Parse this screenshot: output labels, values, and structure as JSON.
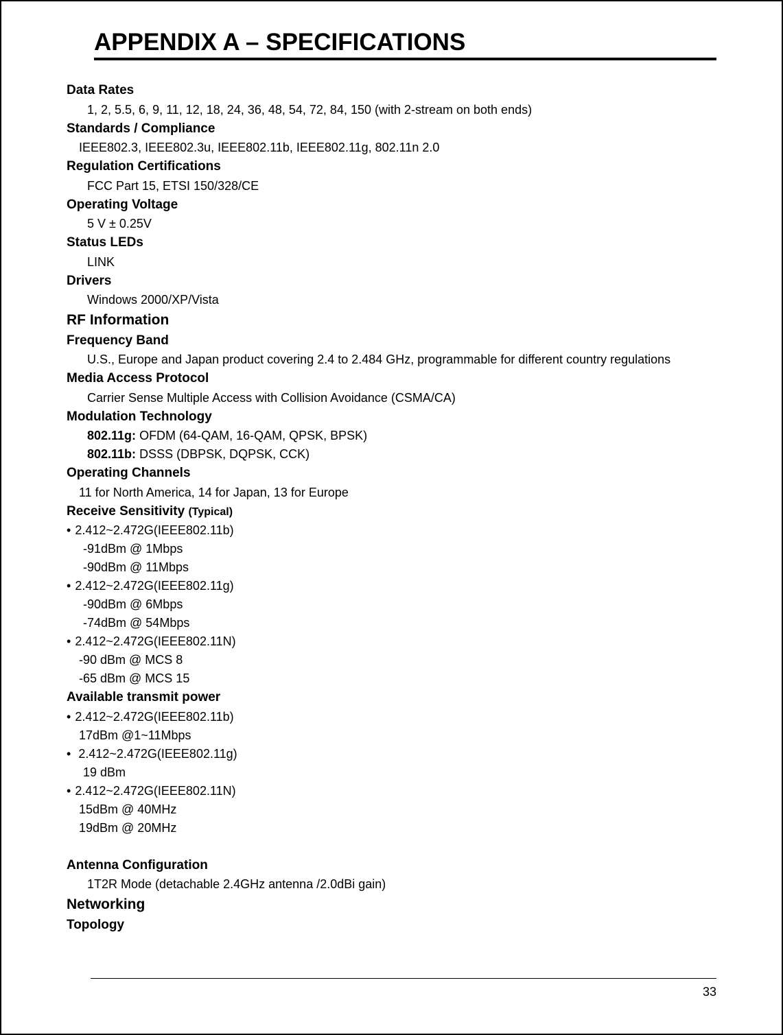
{
  "title": "APPENDIX A – SPECIFICATIONS",
  "page_number": "33",
  "specs": {
    "data_rates": {
      "heading": "Data Rates",
      "value": "1, 2, 5.5, 6, 9, 11, 12, 18, 24, 36, 48, 54, 72, 84, 150 (with 2-stream on both ends)"
    },
    "standards": {
      "heading": "Standards / Compliance",
      "value": "IEEE802.3, IEEE802.3u, IEEE802.11b, IEEE802.11g, 802.11n 2.0"
    },
    "reg_cert": {
      "heading": "Regulation Certifications",
      "value": "FCC Part 15, ETSI 150/328/CE"
    },
    "op_voltage": {
      "heading": "Operating Voltage",
      "value": "5 V ± 0.25V"
    },
    "status_leds": {
      "heading": "Status LEDs",
      "value": "LINK"
    },
    "drivers": {
      "heading": "Drivers",
      "value": "Windows 2000/XP/Vista"
    },
    "rf_info": {
      "heading": "RF Information"
    },
    "freq_band": {
      "heading": "Frequency Band",
      "value": "U.S., Europe and Japan product covering 2.4 to 2.484 GHz, programmable for different country regulations"
    },
    "map": {
      "heading": "Media Access Protocol",
      "value": "Carrier Sense Multiple Access with Collision Avoidance (CSMA/CA)"
    },
    "mod_tech": {
      "heading": "Modulation Technology",
      "line1_bold": "802.11g:",
      "line1_rest": " OFDM (64-QAM, 16-QAM, QPSK, BPSK)",
      "line2_bold": "802.11b:",
      "line2_rest": " DSSS (DBPSK, DQPSK, CCK)"
    },
    "op_channels": {
      "heading": "Operating Channels",
      "value": "11 for North America, 14 for Japan, 13 for Europe"
    },
    "rx_sens": {
      "heading": "Receive Sensitivity ",
      "suffix": "(Typical)",
      "b": {
        "head": "2.412~2.472G(IEEE802.11b)",
        "l1": "-91dBm @ 1Mbps",
        "l2": "-90dBm @ 11Mbps"
      },
      "g": {
        "head": "2.412~2.472G(IEEE802.11g)",
        "l1": "-90dBm @ 6Mbps",
        "l2": "-74dBm @ 54Mbps"
      },
      "n": {
        "head": "2.412~2.472G(IEEE802.11N)",
        "l1": "-90 dBm @ MCS 8",
        "l2": "-65 dBm @ MCS 15"
      }
    },
    "tx_power": {
      "heading": "Available transmit power",
      "b": {
        "head": "2.412~2.472G(IEEE802.11b)",
        "l1": "17dBm @1~11Mbps"
      },
      "g": {
        "head": " 2.412~2.472G(IEEE802.11g)",
        "l1": "19 dBm"
      },
      "n": {
        "head": "2.412~2.472G(IEEE802.11N)",
        "l1": "15dBm @ 40MHz",
        "l2": "19dBm @ 20MHz"
      }
    },
    "antenna": {
      "heading": "Antenna Configuration",
      "value": "1T2R Mode (detachable 2.4GHz antenna /2.0dBi gain)"
    },
    "networking": {
      "heading": "Networking"
    },
    "topology": {
      "heading": "Topology"
    }
  }
}
